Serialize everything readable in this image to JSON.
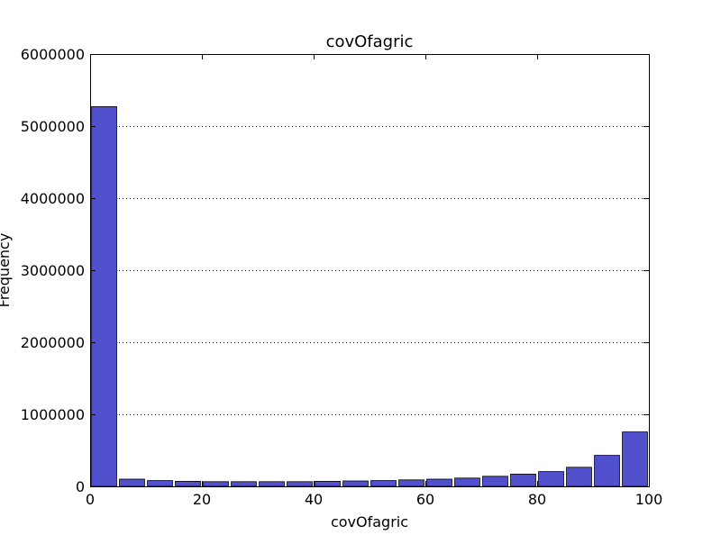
{
  "chart_data": {
    "type": "bar",
    "title": "covOfagric",
    "xlabel": "covOfagric",
    "ylabel": "Frequency",
    "xlim": [
      0,
      100
    ],
    "ylim": [
      0,
      6000000
    ],
    "bin_width": 5,
    "x_ticks": [
      0,
      20,
      40,
      60,
      80,
      100
    ],
    "y_ticks": [
      0,
      1000000,
      2000000,
      3000000,
      4000000,
      5000000,
      6000000
    ],
    "x_tick_labels": [
      "0",
      "20",
      "40",
      "60",
      "80",
      "100"
    ],
    "y_tick_labels": [
      "0",
      "1000000",
      "2000000",
      "3000000",
      "4000000",
      "5000000",
      "6000000"
    ],
    "grid": "y-dotted",
    "bar_color": "#5050cc",
    "bins": [
      0,
      5,
      10,
      15,
      20,
      25,
      30,
      35,
      40,
      45,
      50,
      55,
      60,
      65,
      70,
      75,
      80,
      85,
      90,
      95
    ],
    "values": [
      5270000,
      100000,
      80000,
      70000,
      65000,
      65000,
      65000,
      65000,
      70000,
      75000,
      80000,
      90000,
      100000,
      115000,
      140000,
      170000,
      205000,
      265000,
      430000,
      755000
    ]
  }
}
